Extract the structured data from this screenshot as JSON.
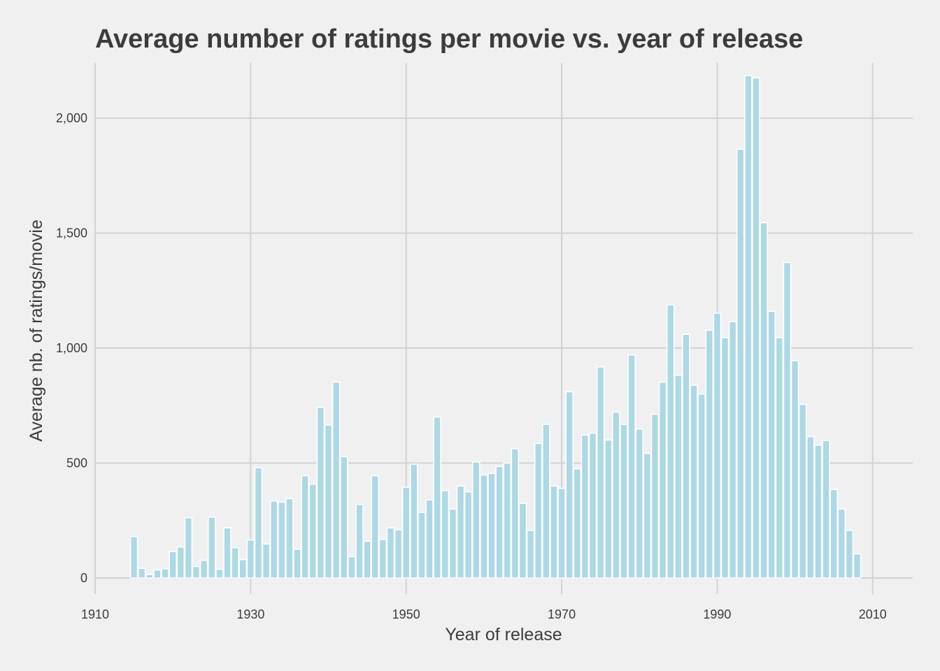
{
  "chart_data": {
    "type": "bar",
    "title": "Average number of ratings per movie vs. year of release",
    "xlabel": "Year of release",
    "ylabel": "Average nb. of ratings/movie",
    "xlim": [
      1910,
      2012
    ],
    "ylim": [
      -70,
      2240
    ],
    "x_ticks": [
      1910,
      1930,
      1950,
      1970,
      1990,
      2010
    ],
    "x_tick_labels": [
      "1910",
      "1930",
      "1950",
      "1970",
      "1990",
      "2010"
    ],
    "y_ticks": [
      0,
      500,
      1000,
      1500,
      2000
    ],
    "y_tick_labels": [
      "0",
      "500",
      "1,000",
      "1,500",
      "2,000"
    ],
    "grid": true,
    "bar_color": "#add8e6",
    "bar_edge_color": "#ffffff",
    "background_color": "#f0f0f0",
    "x": [
      1915,
      1916,
      1917,
      1918,
      1919,
      1920,
      1921,
      1922,
      1923,
      1924,
      1925,
      1926,
      1927,
      1928,
      1929,
      1930,
      1931,
      1932,
      1933,
      1934,
      1935,
      1936,
      1937,
      1938,
      1939,
      1940,
      1941,
      1942,
      1943,
      1944,
      1945,
      1946,
      1947,
      1948,
      1949,
      1950,
      1951,
      1952,
      1953,
      1954,
      1955,
      1956,
      1957,
      1958,
      1959,
      1960,
      1961,
      1962,
      1963,
      1964,
      1965,
      1966,
      1967,
      1968,
      1969,
      1970,
      1971,
      1972,
      1973,
      1974,
      1975,
      1976,
      1977,
      1978,
      1979,
      1980,
      1981,
      1982,
      1983,
      1984,
      1985,
      1986,
      1987,
      1988,
      1989,
      1990,
      1991,
      1992,
      1993,
      1994,
      1995,
      1996,
      1997,
      1998,
      1999,
      2000,
      2001,
      2002,
      2003,
      2004,
      2005,
      2006,
      2007,
      2008
    ],
    "values": [
      180,
      42,
      15,
      35,
      40,
      115,
      135,
      262,
      50,
      77,
      265,
      38,
      218,
      132,
      80,
      165,
      480,
      148,
      335,
      330,
      345,
      125,
      445,
      408,
      742,
      665,
      852,
      528,
      93,
      320,
      160,
      445,
      168,
      218,
      210,
      395,
      495,
      285,
      340,
      700,
      380,
      300,
      400,
      375,
      505,
      448,
      455,
      485,
      500,
      562,
      325,
      207,
      585,
      668,
      400,
      390,
      810,
      475,
      622,
      630,
      918,
      600,
      722,
      668,
      970,
      648,
      542,
      712,
      852,
      1188,
      882,
      1060,
      838,
      800,
      1078,
      1152,
      1045,
      1115,
      1865,
      2185,
      2175,
      1545,
      1160,
      1045,
      1372,
      945,
      755,
      615,
      578,
      598,
      385,
      300,
      207,
      105
    ]
  }
}
